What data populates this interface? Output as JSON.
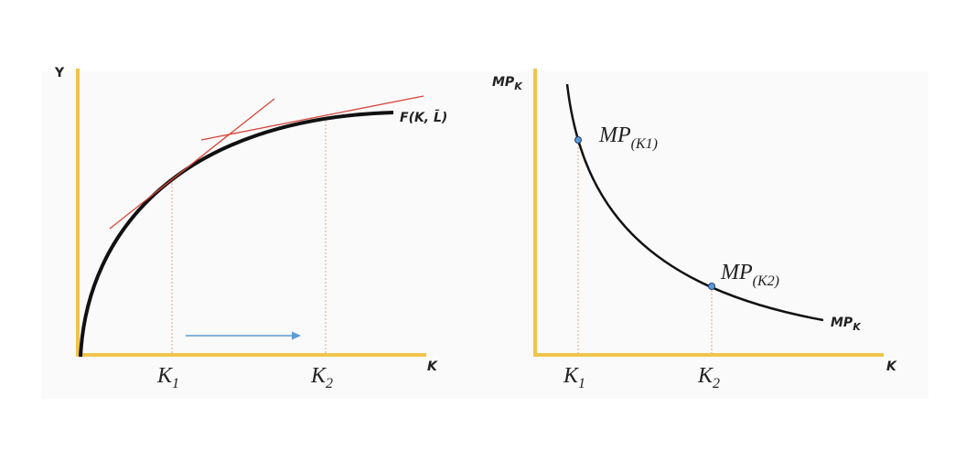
{
  "left_panel": {
    "y_axis_label": "Y",
    "x_axis_label": "K",
    "curve_label": "F(K, L̄)",
    "tick_labels": [
      {
        "main": "K",
        "sub": "1"
      },
      {
        "main": "K",
        "sub": "2"
      }
    ]
  },
  "right_panel": {
    "y_axis_label": {
      "main": "MP",
      "sub": "K"
    },
    "x_axis_label": "K",
    "curve_label": {
      "main": "MP",
      "sub": "K"
    },
    "point_labels": [
      {
        "main": "MP",
        "sub": "(K1)"
      },
      {
        "main": "MP",
        "sub": "(K2)"
      }
    ],
    "tick_labels": [
      {
        "main": "K",
        "sub": "1"
      },
      {
        "main": "K",
        "sub": "2"
      }
    ]
  }
}
